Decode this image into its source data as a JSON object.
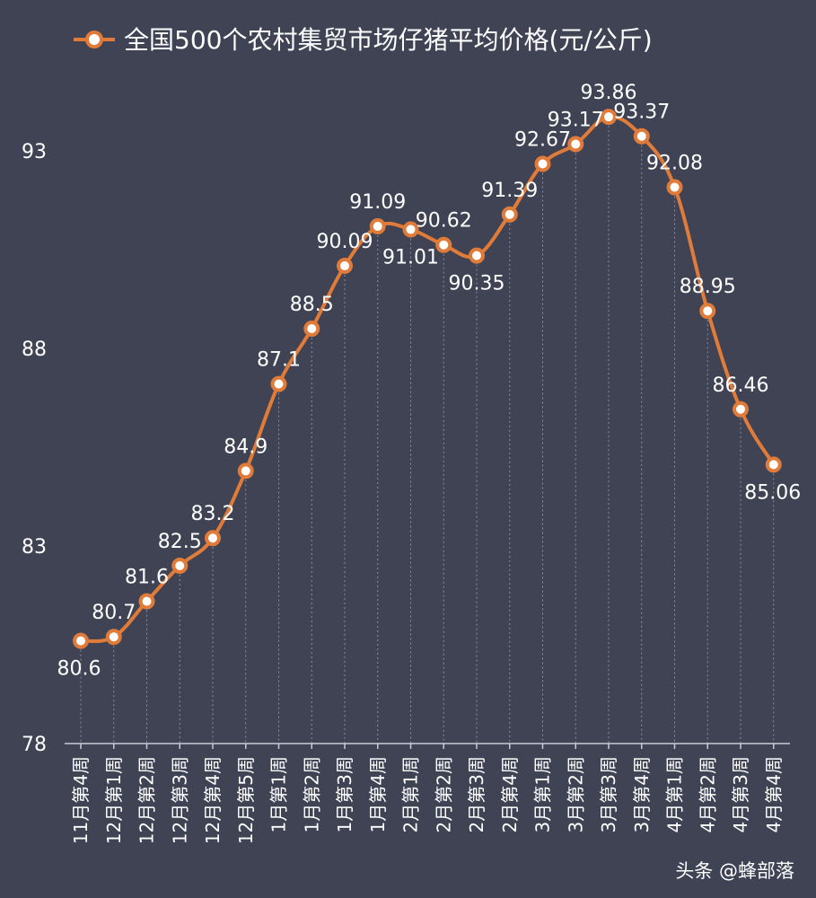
{
  "chart_data": {
    "type": "line",
    "title": "",
    "legend": {
      "label": "全国500个农村集贸市场仔猪平均价格(元/公斤)",
      "position": "top"
    },
    "xlabel": "",
    "ylabel": "",
    "ylim": [
      78,
      95
    ],
    "yticks": [
      78,
      83,
      88,
      93
    ],
    "grid": "vertical-dotted",
    "line_color": "#e07b39",
    "categories": [
      "11月第4周",
      "12月第1周",
      "12月第2周",
      "12月第3周",
      "12月第4周",
      "12月第5周",
      "1月第1周",
      "1月第2周",
      "1月第3周",
      "1月第4周",
      "2月第1周",
      "2月第2周",
      "2月第3周",
      "2月第4周",
      "3月第1周",
      "3月第2周",
      "3月第3周",
      "3月第4周",
      "4月第1周",
      "4月第2周",
      "4月第3周",
      "4月第4周"
    ],
    "values": [
      80.6,
      80.7,
      81.6,
      82.5,
      83.2,
      84.9,
      87.1,
      88.5,
      90.09,
      91.09,
      91.01,
      90.62,
      90.35,
      91.39,
      92.67,
      93.17,
      93.86,
      93.37,
      92.08,
      88.95,
      86.46,
      85.06
    ],
    "data_labels": [
      "80.6",
      "80.7",
      "81.6",
      "82.5",
      "83.2",
      "84.9",
      "87.1",
      "88.5",
      "90.09",
      "91.09",
      "91.01",
      "90.62",
      "90.35",
      "91.39",
      "92.67",
      "93.17",
      "93.86",
      "93.37",
      "92.08",
      "88.95",
      "86.46",
      "85.06"
    ]
  },
  "watermark": "头条 @蜂部落"
}
